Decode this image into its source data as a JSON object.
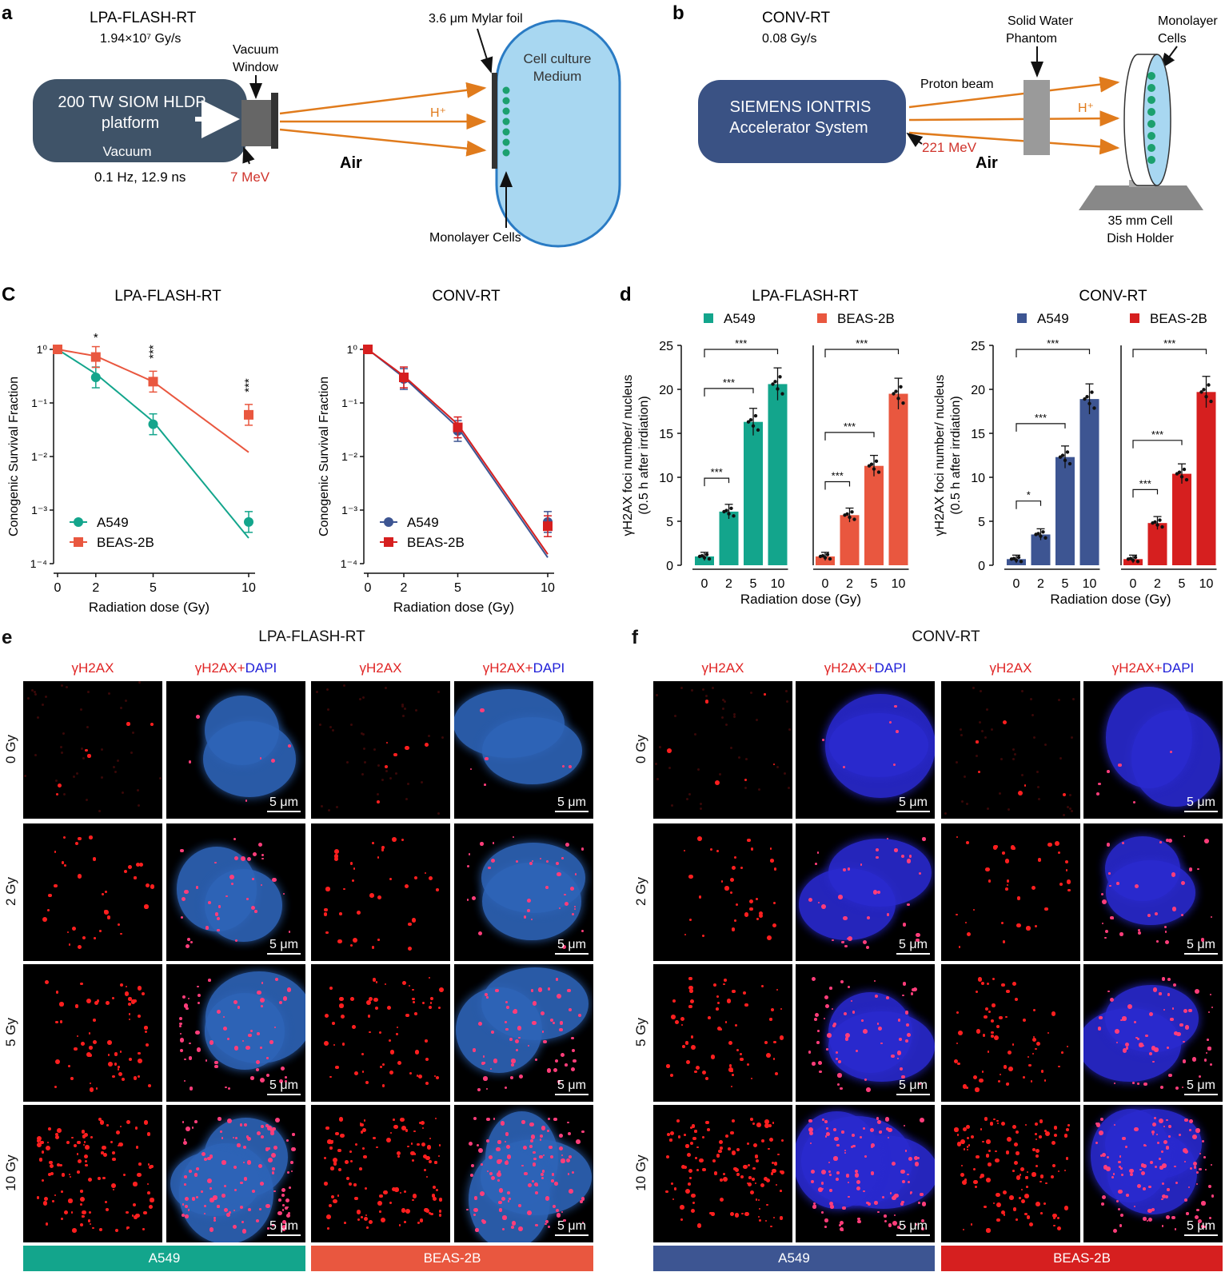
{
  "colors": {
    "teal": "#13a58c",
    "orange_red": "#e9573f",
    "navy": "#3d5592",
    "red": "#d61f1f",
    "beam": "#e07b1c",
    "platform": "#3f5368",
    "medium": "#a8d7f1",
    "nucleus_blue": "#2e64b8"
  },
  "panel_letters": {
    "a": "a",
    "b": "b",
    "c": "C",
    "d": "d",
    "e": "e",
    "f": "f"
  },
  "panel_a": {
    "title": "LPA-FLASH-RT",
    "dose_rate": "1.94×10⁷ Gy/s",
    "vacuum_window": [
      "Vacuum",
      "Window"
    ],
    "platform": [
      "200 TW SIOM HLDP",
      "platform"
    ],
    "vacuum": "Vacuum",
    "params": "0.1 Hz, 12.9 ns",
    "energy": "7 MeV",
    "air": "Air",
    "ion": "H⁺",
    "foil": "3.6 μm Mylar foil",
    "medium": [
      "Cell culture",
      "Medium"
    ],
    "cells": "Monolayer Cells"
  },
  "panel_b": {
    "title": "CONV-RT",
    "dose_rate": "0.08 Gy/s",
    "accelerator": [
      "SIEMENS IONTRIS",
      "Accelerator System"
    ],
    "beam": "Proton beam",
    "energy": "221 MeV",
    "air": "Air",
    "ion": "H⁺",
    "phantom": [
      "Solid Water",
      "Phantom"
    ],
    "cells": [
      "Monolayer",
      "Cells"
    ],
    "holder": [
      "35 mm Cell",
      "Dish Holder"
    ]
  },
  "chart_data": [
    {
      "type": "scatter",
      "title": "LPA-FLASH-RT",
      "xlabel": "Radiation dose (Gy)",
      "ylabel": "Conogenic Survival Fraction",
      "yscale": "log",
      "xlim": [
        0,
        10
      ],
      "ylim": [
        0.0001,
        1
      ],
      "x_ticks": [
        "0",
        "2",
        "5",
        "10"
      ],
      "y_ticks": [
        "1⁰",
        "1⁻¹",
        "1⁻²",
        "1⁻³",
        "1⁻⁴"
      ],
      "legend_position": "bottom-left",
      "series": [
        {
          "name": "A549",
          "color": "#13a58c",
          "marker": "circle",
          "x": [
            0,
            2,
            5,
            10
          ],
          "y": [
            1.0,
            0.3,
            0.04,
            0.0006
          ],
          "fit": [
            [
              0,
              1.0
            ],
            [
              2,
              0.35
            ],
            [
              5,
              0.045
            ],
            [
              10,
              0.0003
            ]
          ]
        },
        {
          "name": "BEAS-2B",
          "color": "#e9573f",
          "marker": "square",
          "x": [
            0,
            2,
            5,
            10
          ],
          "y": [
            1.0,
            0.72,
            0.25,
            0.06
          ],
          "fit": [
            [
              0,
              1.0
            ],
            [
              2,
              0.75
            ],
            [
              5,
              0.25
            ],
            [
              10,
              0.012
            ]
          ]
        }
      ],
      "annotations": [
        {
          "x": 2,
          "text": "*"
        },
        {
          "x": 5,
          "text": "***"
        },
        {
          "x": 10,
          "text": "***"
        }
      ]
    },
    {
      "type": "scatter",
      "title": "CONV-RT",
      "xlabel": "Radiation dose (Gy)",
      "ylabel": "Conogenic Survival Fraction",
      "yscale": "log",
      "xlim": [
        0,
        10
      ],
      "ylim": [
        0.0001,
        1
      ],
      "x_ticks": [
        "0",
        "2",
        "5",
        "10"
      ],
      "y_ticks": [
        "1⁰",
        "1⁻¹",
        "1⁻²",
        "1⁻³",
        "1⁻⁴"
      ],
      "legend_position": "bottom-left",
      "series": [
        {
          "name": "A549",
          "color": "#3d5592",
          "marker": "circle",
          "x": [
            0,
            2,
            5,
            10
          ],
          "y": [
            1.0,
            0.28,
            0.03,
            0.0006
          ],
          "fit": [
            [
              0,
              1.0
            ],
            [
              2,
              0.3
            ],
            [
              5,
              0.035
            ],
            [
              10,
              0.00013
            ]
          ]
        },
        {
          "name": "BEAS-2B",
          "color": "#d61f1f",
          "marker": "square",
          "x": [
            0,
            2,
            5,
            10
          ],
          "y": [
            1.0,
            0.3,
            0.035,
            0.0005
          ],
          "fit": [
            [
              0,
              1.0
            ],
            [
              2,
              0.32
            ],
            [
              5,
              0.04
            ],
            [
              10,
              0.00015
            ]
          ]
        }
      ]
    },
    {
      "type": "bar",
      "title": "LPA-FLASH-RT",
      "xlabel": "Radiation dose (Gy)",
      "ylabel": "γH2AX foci number/ nucleus (0.5 h after irrdiation)",
      "ylim": [
        0,
        25
      ],
      "y_ticks": [
        "0",
        "5",
        "10",
        "15",
        "20",
        "25"
      ],
      "categories": [
        "0",
        "2",
        "5",
        "10"
      ],
      "series": [
        {
          "name": "A549",
          "color": "#13a58c",
          "values": [
            1.0,
            6.1,
            16.3,
            20.6
          ]
        },
        {
          "name": "BEAS-2B",
          "color": "#e9573f",
          "values": [
            1.0,
            5.7,
            11.3,
            19.5
          ]
        }
      ],
      "significance": "***"
    },
    {
      "type": "bar",
      "title": "CONV-RT",
      "xlabel": "Radiation dose (Gy)",
      "ylabel": "γH2AX foci number/ nucleus (0.5 h after irrdiation)",
      "ylim": [
        0,
        25
      ],
      "y_ticks": [
        "0",
        "5",
        "10",
        "15",
        "20",
        "25"
      ],
      "categories": [
        "0",
        "2",
        "5",
        "10"
      ],
      "series": [
        {
          "name": "A549",
          "color": "#3d5592",
          "values": [
            0.7,
            3.5,
            12.3,
            18.9
          ]
        },
        {
          "name": "BEAS-2B",
          "color": "#d61f1f",
          "values": [
            0.7,
            4.8,
            10.4,
            19.7
          ]
        }
      ],
      "significance_a549": [
        "*",
        "***",
        "***"
      ],
      "significance_beas": [
        "***",
        "***",
        "***"
      ]
    }
  ],
  "panel_e": {
    "title": "LPA-FLASH-RT",
    "channels": [
      "γH2AX",
      "γH2AX+DAPI",
      "γH2AX",
      "γH2AX+DAPI"
    ],
    "dapi_suffix": "DAPI",
    "rows": [
      "0 Gy",
      "2 Gy",
      "5 Gy",
      "10 Gy"
    ],
    "scale": "5 μm",
    "cell_lines": [
      "A549",
      "BEAS-2B"
    ]
  },
  "panel_f": {
    "title": "CONV-RT",
    "channels": [
      "γH2AX",
      "γH2AX+DAPI",
      "γH2AX",
      "γH2AX+DAPI"
    ],
    "rows": [
      "0 Gy",
      "2 Gy",
      "5 Gy",
      "10 Gy"
    ],
    "scale": "5 μm",
    "cell_lines": [
      "A549",
      "BEAS-2B"
    ]
  }
}
